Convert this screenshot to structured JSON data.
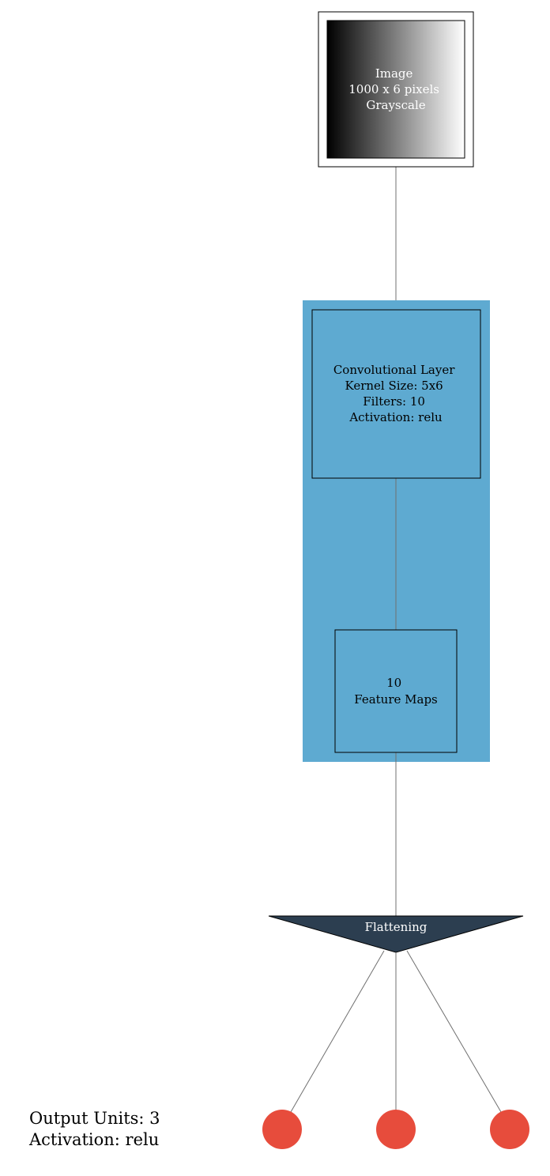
{
  "image_node": {
    "lines": [
      "Image",
      "1000 x 6 pixels",
      "Grayscale"
    ]
  },
  "conv_node": {
    "lines": [
      "Convolutional Layer",
      "Kernel Size: 5x6",
      "Filters: 10",
      "Activation: relu"
    ]
  },
  "feature_maps_node": {
    "lines": [
      "10",
      "Feature Maps"
    ]
  },
  "flatten_node": {
    "label": "Flattening"
  },
  "output_label": {
    "lines": [
      "Output Units: 3",
      "Activation: relu"
    ]
  },
  "output_units": 3,
  "colors": {
    "cluster_fill": "#5eaad1",
    "flatten_fill": "#2c3e50",
    "output_fill": "#e74c3c",
    "edge": "#707070",
    "border": "#000000",
    "light_text": "#ffffff",
    "dark_text": "#000000"
  }
}
